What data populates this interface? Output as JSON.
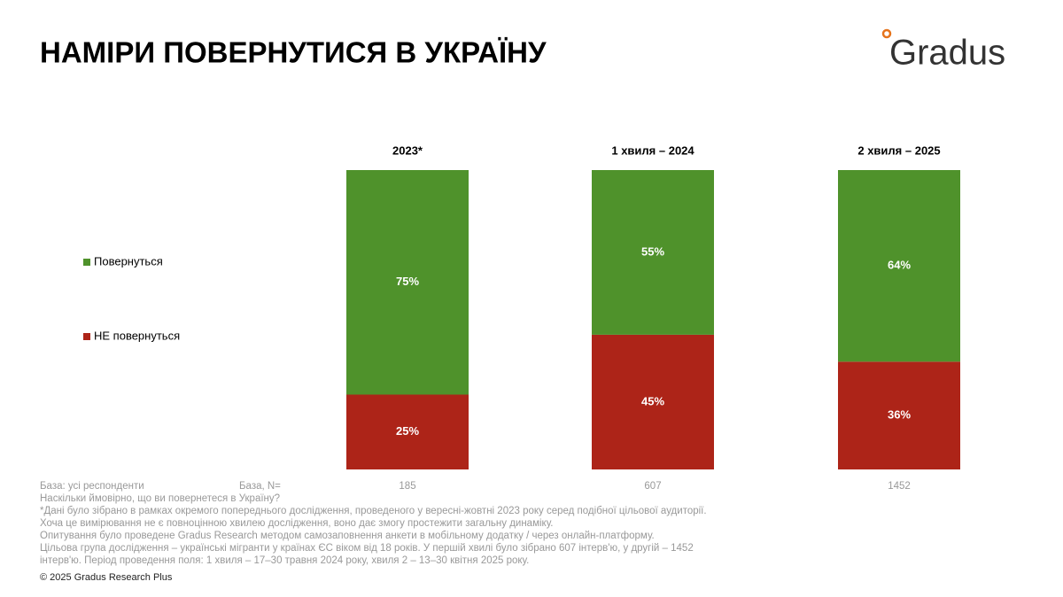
{
  "chart_data": {
    "type": "stacked_bar",
    "title": "НАМІРИ ПОВЕРНУТИСЯ В УКРАЇНУ",
    "categories": [
      "2023*",
      "1 хвиля – 2024",
      "2 хвиля – 2025"
    ],
    "series": [
      {
        "name": "Повернуться",
        "color": "#4f922b",
        "values": [
          75,
          55,
          64
        ],
        "value_labels": [
          "75%",
          "55%",
          "64%"
        ]
      },
      {
        "name": "НЕ повернуться",
        "color": "#ad2418",
        "values": [
          25,
          45,
          36
        ],
        "value_labels": [
          "25%",
          "45%",
          "36%"
        ]
      }
    ],
    "ylim": [
      0,
      100
    ],
    "legend": "left",
    "base": {
      "label": "База, N=",
      "values": [
        185,
        607,
        1452
      ]
    }
  },
  "logo": "Gradus",
  "notes": [
    "База: усі респонденти",
    "Наскільки ймовірно, що ви повернетеся в Україну?",
    "*Дані було зібрано в рамках окремого попереднього дослідження, проведеного у вересні-жовтні 2023 року серед подібної цільової аудиторії.",
    "Хоча це вимірювання не є повноцінною хвилею дослідження, воно дає змогу простежити загальну динаміку.",
    "Опитування було проведене Gradus Research методом самозаповнення анкети в мобільному додатку / через онлайн-платформу.",
    "Цільова група дослідження – українські мігранти у країнах ЄС віком від 18 років. У першій хвилі було зібрано 607 інтерв'ю, у другій – 1452",
    "інтерв'ю. Період проведення поля: 1 хвиля – 17–30 травня 2024 року, хвиля 2 – 13–30 квітня 2025 року."
  ],
  "copyright": "© 2025 Gradus Research Plus"
}
